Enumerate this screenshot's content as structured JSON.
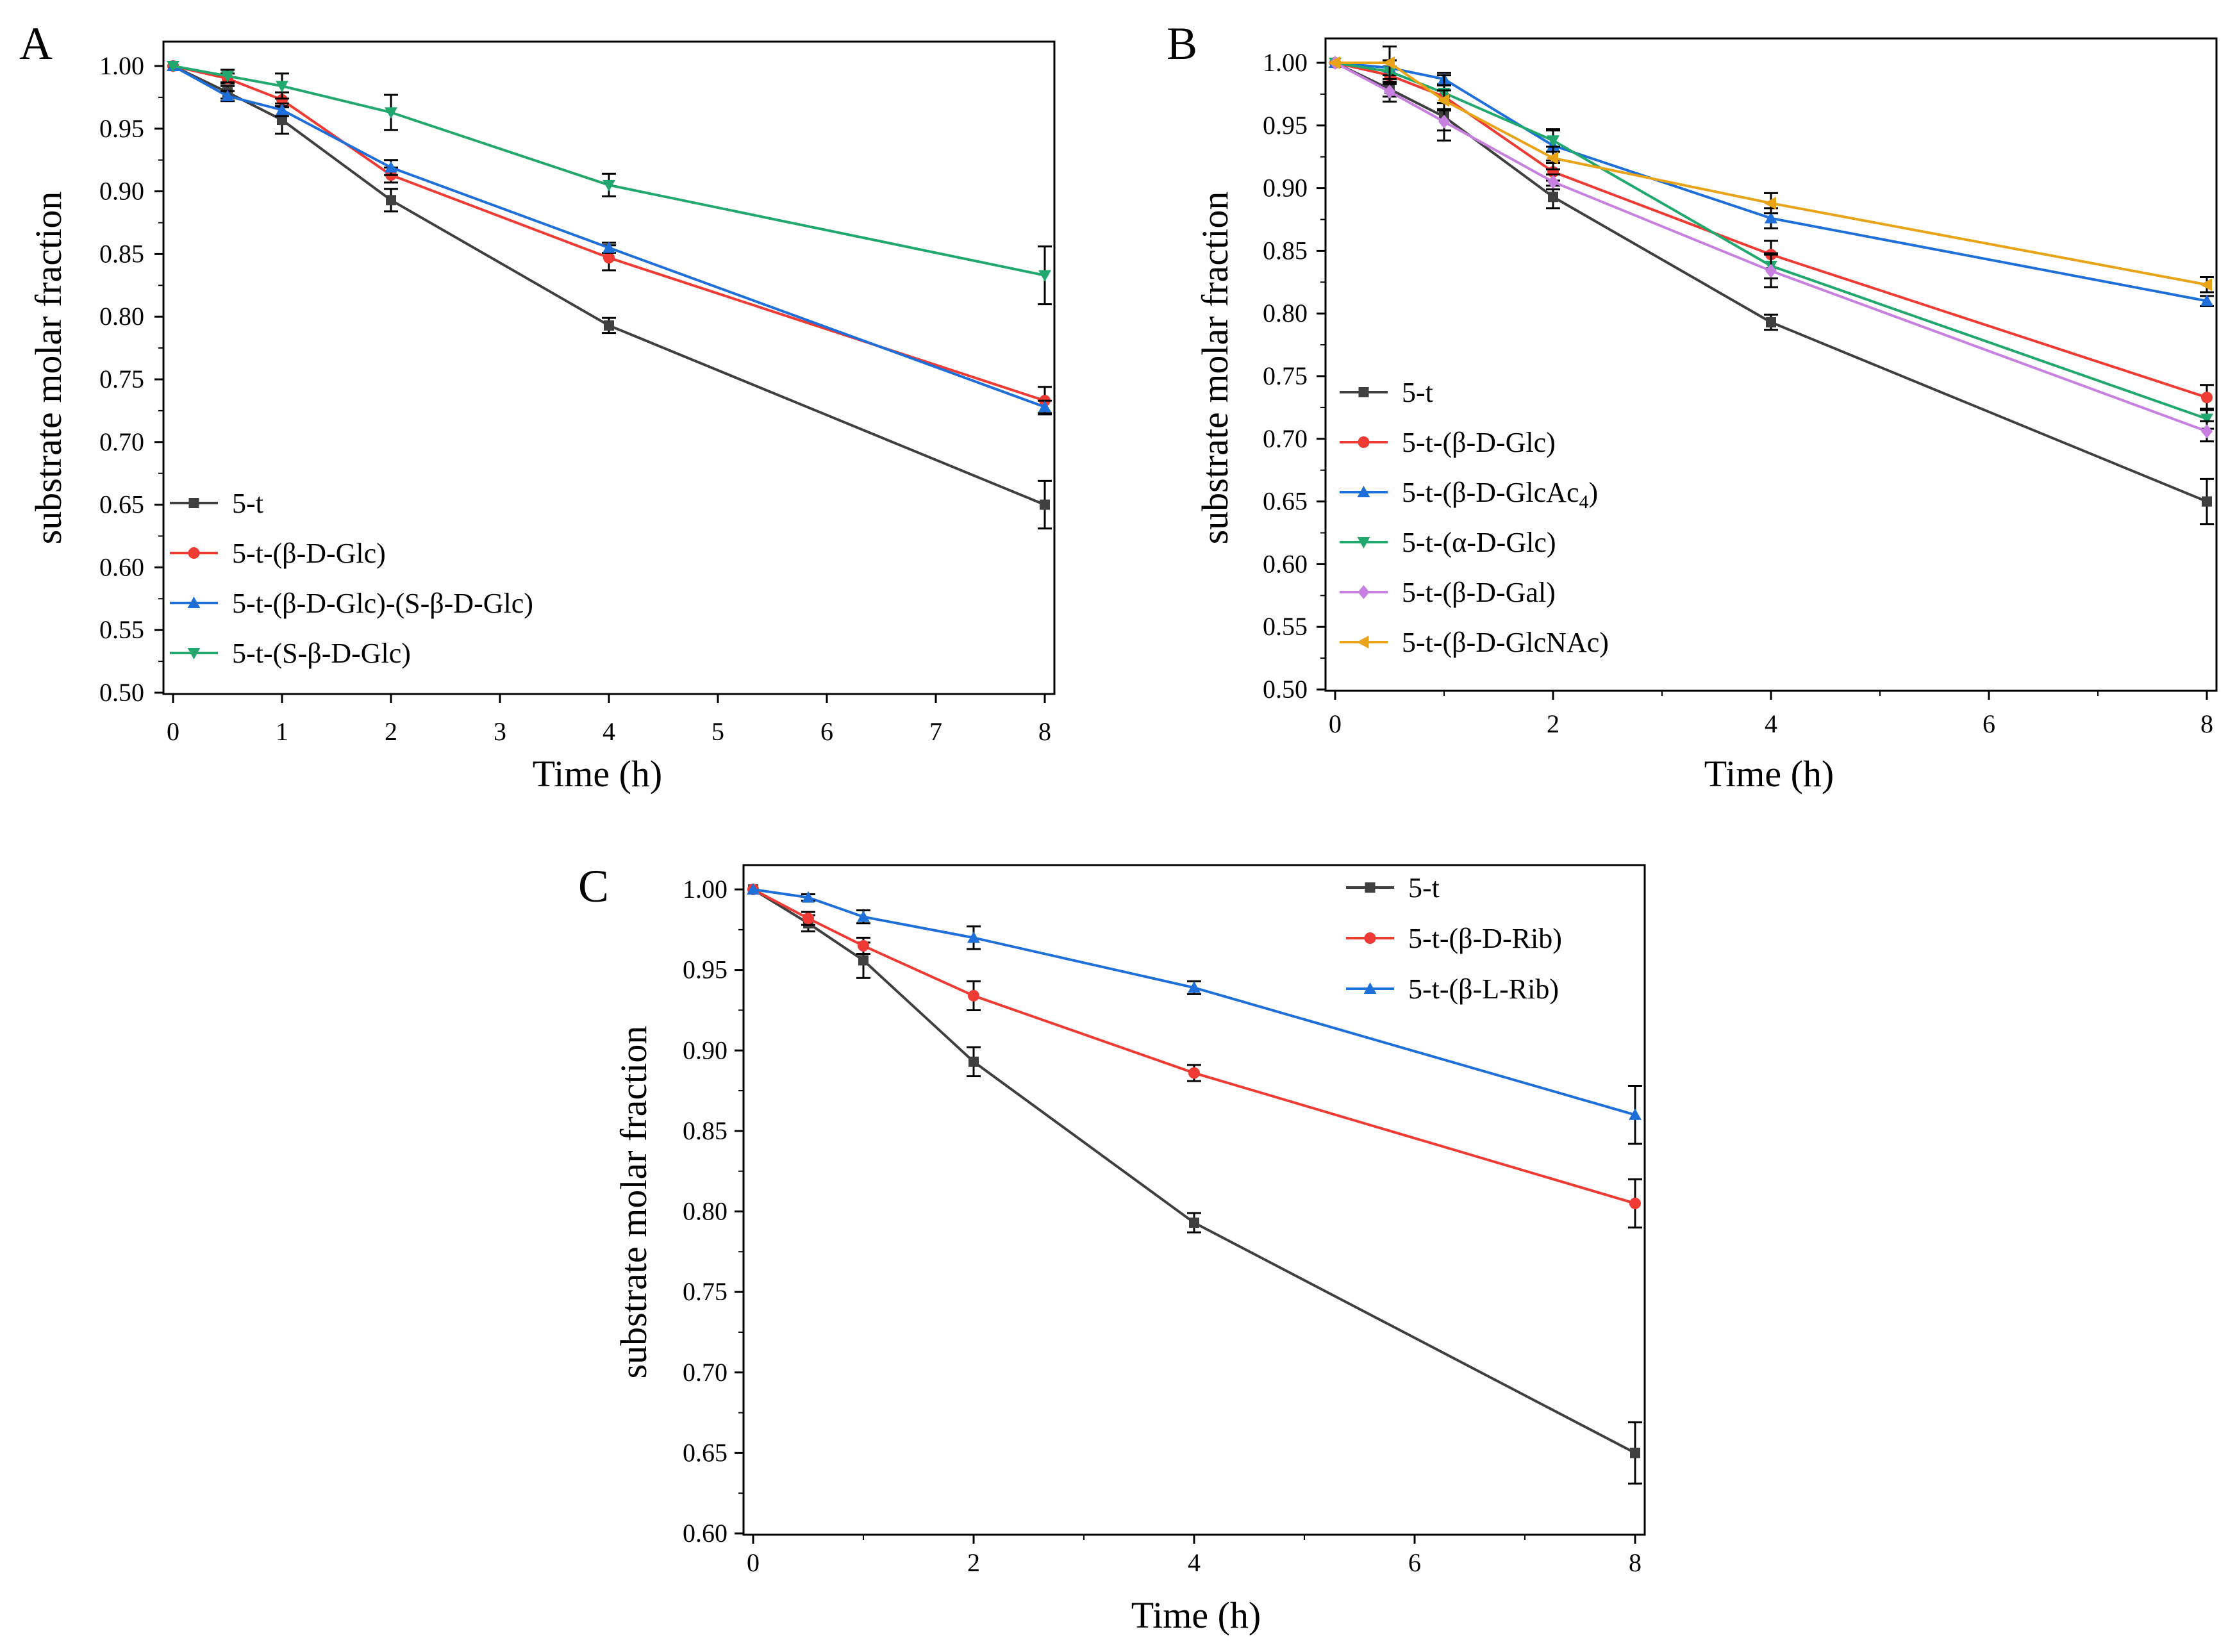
{
  "figure": {
    "panels": [
      "A",
      "B",
      "C"
    ]
  },
  "colors": {
    "black": "#3f3f3f",
    "red": "#f03a34",
    "blue": "#1e6fd9",
    "green": "#21a86e",
    "violet": "#c77fe0",
    "orange": "#e8a317"
  },
  "chart_data": [
    {
      "id": "A",
      "type": "line",
      "panel_letter": "A",
      "xlabel": "Time (h)",
      "ylabel": "substrate molar fraction",
      "xlim": [
        0,
        8
      ],
      "ylim": [
        0.5,
        1.0
      ],
      "x_ticks": [
        0,
        1,
        2,
        3,
        4,
        5,
        6,
        7,
        8
      ],
      "x_tick_labels": [
        "0",
        "1",
        "2",
        "3",
        "4",
        "5",
        "6",
        "7",
        "8"
      ],
      "y_ticks": [
        0.5,
        0.55,
        0.6,
        0.65,
        0.7,
        0.75,
        0.8,
        0.85,
        0.9,
        0.95,
        1.0
      ],
      "y_tick_labels": [
        "0.50",
        "0.55",
        "0.60",
        "0.65",
        "0.70",
        "0.75",
        "0.80",
        "0.85",
        "0.90",
        "0.95",
        "1.00"
      ],
      "legend_position": "bottom-left",
      "series": [
        {
          "name": "5-t",
          "color": "#3f3f3f",
          "marker": "square",
          "x": [
            0,
            0.5,
            1,
            2,
            4,
            8
          ],
          "y": [
            1.0,
            0.979,
            0.957,
            0.893,
            0.793,
            0.65
          ],
          "err": [
            0,
            0.005,
            0.011,
            0.009,
            0.006,
            0.019
          ]
        },
        {
          "name": "5-t-(β-D-Glc)",
          "color": "#f03a34",
          "marker": "circle",
          "x": [
            0,
            0.5,
            1,
            2,
            4,
            8
          ],
          "y": [
            1.0,
            0.99,
            0.973,
            0.913,
            0.847,
            0.733
          ],
          "err": [
            0,
            0.004,
            0.006,
            0.006,
            0.01,
            0.011
          ]
        },
        {
          "name": "5-t-(β-D-Glc)-(S-β-D-Glc)",
          "color": "#1e6fd9",
          "marker": "triangle-up",
          "x": [
            0,
            0.5,
            1,
            2,
            4,
            8
          ],
          "y": [
            1.0,
            0.976,
            0.965,
            0.919,
            0.855,
            0.728
          ],
          "err": [
            0,
            0.004,
            0.005,
            0.006,
            0.004,
            0.005
          ]
        },
        {
          "name": "5-t-(S-β-D-Glc)",
          "color": "#21a86e",
          "marker": "triangle-down",
          "x": [
            0,
            0.5,
            1,
            2,
            4,
            8
          ],
          "y": [
            1.0,
            0.992,
            0.984,
            0.963,
            0.905,
            0.833
          ],
          "err": [
            0,
            0.005,
            0.01,
            0.014,
            0.009,
            0.023
          ]
        }
      ]
    },
    {
      "id": "B",
      "type": "line",
      "panel_letter": "B",
      "xlabel": "Time (h)",
      "ylabel": "substrate molar fraction",
      "xlim": [
        0,
        8
      ],
      "ylim": [
        0.5,
        1.0
      ],
      "x_ticks": [
        0,
        2,
        4,
        6,
        8
      ],
      "x_tick_labels": [
        "0",
        "2",
        "4",
        "6",
        "8"
      ],
      "y_ticks": [
        0.5,
        0.55,
        0.6,
        0.65,
        0.7,
        0.75,
        0.8,
        0.85,
        0.9,
        0.95,
        1.0
      ],
      "y_tick_labels": [
        "0.50",
        "0.55",
        "0.60",
        "0.65",
        "0.70",
        "0.75",
        "0.80",
        "0.85",
        "0.90",
        "0.95",
        "1.00"
      ],
      "legend_position": "bottom-left",
      "series": [
        {
          "name": "5-t",
          "color": "#3f3f3f",
          "marker": "square",
          "x": [
            0,
            0.5,
            1,
            2,
            4,
            8
          ],
          "y": [
            1.0,
            0.979,
            0.957,
            0.893,
            0.793,
            0.65
          ],
          "err": [
            0,
            0.006,
            0.011,
            0.009,
            0.006,
            0.018
          ]
        },
        {
          "name": "5-t-(β-D-Glc)",
          "color": "#f03a34",
          "marker": "circle",
          "x": [
            0,
            0.5,
            1,
            2,
            4,
            8
          ],
          "y": [
            1.0,
            0.99,
            0.973,
            0.913,
            0.847,
            0.733
          ],
          "err": [
            0,
            0.007,
            0.01,
            0.007,
            0.011,
            0.01
          ]
        },
        {
          "name": "5-t-(β-D-GlcAc",
          "name_sub": "4",
          "name_tail": ")",
          "color": "#1e6fd9",
          "marker": "triangle-up",
          "x": [
            0,
            0.5,
            1,
            2,
            4,
            8
          ],
          "y": [
            1.0,
            0.996,
            0.987,
            0.934,
            0.876,
            0.81
          ],
          "err": [
            0,
            0.006,
            0.005,
            0.012,
            0.008,
            0.004
          ]
        },
        {
          "name": "5-t-(α-D-Glc)",
          "color": "#21a86e",
          "marker": "triangle-down",
          "x": [
            0,
            0.5,
            1,
            2,
            4,
            8
          ],
          "y": [
            1.0,
            0.993,
            0.976,
            0.938,
            0.838,
            0.716
          ],
          "err": [
            0,
            0.009,
            0.014,
            0.009,
            0.01,
            0.008
          ]
        },
        {
          "name": "5-t-(β-D-Gal)",
          "color": "#c77fe0",
          "marker": "diamond",
          "x": [
            0,
            0.5,
            1,
            2,
            4,
            8
          ],
          "y": [
            1.0,
            0.977,
            0.953,
            0.905,
            0.834,
            0.706
          ],
          "err": [
            0,
            0.008,
            0.015,
            0.006,
            0.013,
            0.008
          ]
        },
        {
          "name": "5-t-(β-D-GlcNAc)",
          "color": "#e8a317",
          "marker": "triangle-left",
          "x": [
            0,
            0.5,
            1,
            2,
            4,
            8
          ],
          "y": [
            1.0,
            1.0,
            0.97,
            0.924,
            0.888,
            0.823
          ],
          "err": [
            0,
            0.013,
            0.008,
            0.009,
            0.008,
            0.006
          ]
        }
      ]
    },
    {
      "id": "C",
      "type": "line",
      "panel_letter": "C",
      "xlabel": "Time (h)",
      "ylabel": "substrate molar fraction",
      "xlim": [
        0,
        8
      ],
      "ylim": [
        0.6,
        1.0
      ],
      "x_ticks": [
        0,
        2,
        4,
        6,
        8
      ],
      "x_tick_labels": [
        "0",
        "2",
        "4",
        "6",
        "8"
      ],
      "y_ticks": [
        0.6,
        0.65,
        0.7,
        0.75,
        0.8,
        0.85,
        0.9,
        0.95,
        1.0
      ],
      "y_tick_labels": [
        "0.60",
        "0.65",
        "0.70",
        "0.75",
        "0.80",
        "0.85",
        "0.90",
        "0.95",
        "1.00"
      ],
      "legend_position": "top-right",
      "series": [
        {
          "name": "5-t",
          "color": "#3f3f3f",
          "marker": "square",
          "x": [
            0,
            0.5,
            1,
            2,
            4,
            8
          ],
          "y": [
            1.0,
            0.979,
            0.956,
            0.893,
            0.793,
            0.65
          ],
          "err": [
            0,
            0.005,
            0.011,
            0.009,
            0.006,
            0.019
          ]
        },
        {
          "name": "5-t-(β-D-Rib)",
          "color": "#f03a34",
          "marker": "circle",
          "x": [
            0,
            0.5,
            1,
            2,
            4,
            8
          ],
          "y": [
            1.0,
            0.982,
            0.965,
            0.934,
            0.886,
            0.805
          ],
          "err": [
            0,
            0.004,
            0.005,
            0.009,
            0.005,
            0.015
          ]
        },
        {
          "name": "5-t-(β-L-Rib)",
          "color": "#1e6fd9",
          "marker": "triangle-up",
          "x": [
            0,
            0.5,
            1,
            2,
            4,
            8
          ],
          "y": [
            1.0,
            0.995,
            0.983,
            0.97,
            0.939,
            0.86
          ],
          "err": [
            0,
            0.002,
            0.004,
            0.007,
            0.004,
            0.018
          ]
        }
      ]
    }
  ]
}
